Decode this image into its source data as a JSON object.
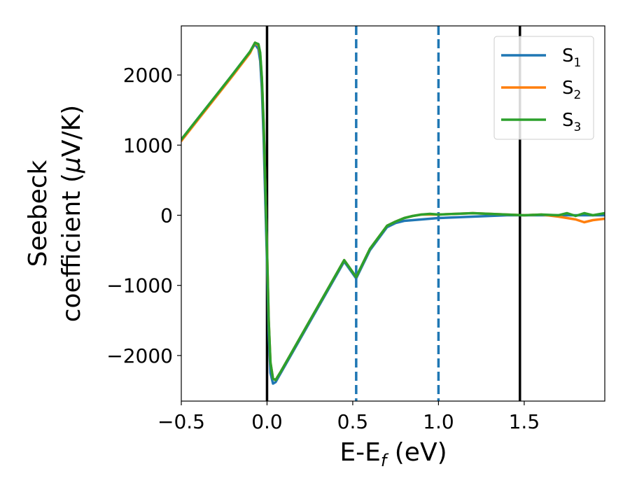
{
  "chart_data": {
    "type": "line",
    "xlabel": {
      "main": "E-E",
      "sub": "f",
      "suffix": " (eV)"
    },
    "ylabel": {
      "line1": "Seebeck",
      "line2_pre": "coefficient  (",
      "line2_mu": "μ",
      "line2_post": "V/K)"
    },
    "xlim": [
      -0.5,
      1.97
    ],
    "ylim": [
      -2650,
      2700
    ],
    "xticks": [
      -0.5,
      0.0,
      0.5,
      1.0,
      1.5
    ],
    "xtick_labels": [
      "−0.5",
      "0.0",
      "0.5",
      "1.0",
      "1.5"
    ],
    "yticks": [
      -2000,
      -1000,
      0,
      1000,
      2000
    ],
    "ytick_labels": [
      "−2000",
      "−1000",
      "0",
      "1000",
      "2000"
    ],
    "grid": false,
    "legend_position": "top-right",
    "vlines": [
      {
        "x": 0.0,
        "color": "#000000",
        "style": "solid"
      },
      {
        "x": 1.475,
        "color": "#000000",
        "style": "solid"
      },
      {
        "x": 0.52,
        "color": "#1f77b4",
        "style": "dashed"
      },
      {
        "x": 1.0,
        "color": "#1f77b4",
        "style": "dashed"
      }
    ],
    "series": [
      {
        "name": "S",
        "sub": "1",
        "color": "#1f77b4",
        "x": [
          -0.5,
          -0.4,
          -0.3,
          -0.2,
          -0.1,
          -0.07,
          -0.05,
          -0.04,
          -0.03,
          -0.02,
          -0.01,
          0.0,
          0.01,
          0.02,
          0.035,
          0.05,
          0.08,
          0.15,
          0.25,
          0.35,
          0.45,
          0.52,
          0.6,
          0.7,
          0.75,
          0.8,
          0.85,
          0.9,
          1.0,
          1.1,
          1.2,
          1.3,
          1.4,
          1.5,
          1.6,
          1.7,
          1.8,
          1.9,
          1.97
        ],
        "y": [
          1080,
          1390,
          1700,
          2010,
          2330,
          2440,
          2370,
          2200,
          1800,
          1100,
          200,
          -700,
          -1700,
          -2250,
          -2400,
          -2380,
          -2250,
          -1950,
          -1520,
          -1090,
          -660,
          -900,
          -500,
          -170,
          -110,
          -80,
          -70,
          -60,
          -40,
          -30,
          -20,
          -10,
          0,
          0,
          0,
          0,
          0,
          0,
          0
        ]
      },
      {
        "name": "S",
        "sub": "2",
        "color": "#ff7f0e",
        "x": [
          -0.5,
          -0.4,
          -0.3,
          -0.2,
          -0.1,
          -0.07,
          -0.05,
          -0.04,
          -0.03,
          -0.02,
          -0.01,
          0.0,
          0.01,
          0.02,
          0.035,
          0.05,
          0.08,
          0.15,
          0.25,
          0.35,
          0.45,
          0.52,
          0.6,
          0.7,
          0.75,
          0.8,
          0.85,
          0.9,
          1.0,
          1.1,
          1.2,
          1.3,
          1.4,
          1.5,
          1.6,
          1.7,
          1.8,
          1.85,
          1.9,
          1.97
        ],
        "y": [
          1060,
          1370,
          1680,
          1990,
          2310,
          2460,
          2420,
          2300,
          1950,
          1300,
          450,
          -500,
          -1500,
          -2100,
          -2330,
          -2350,
          -2230,
          -1930,
          -1500,
          -1070,
          -640,
          -880,
          -480,
          -150,
          -90,
          -40,
          -10,
          10,
          10,
          20,
          30,
          20,
          10,
          0,
          10,
          -20,
          -60,
          -100,
          -70,
          -50
        ]
      },
      {
        "name": "S",
        "sub": "3",
        "color": "#2ca02c",
        "x": [
          -0.5,
          -0.4,
          -0.3,
          -0.2,
          -0.1,
          -0.07,
          -0.05,
          -0.04,
          -0.03,
          -0.02,
          -0.01,
          0.0,
          0.01,
          0.02,
          0.035,
          0.05,
          0.08,
          0.15,
          0.25,
          0.35,
          0.45,
          0.52,
          0.6,
          0.7,
          0.75,
          0.8,
          0.85,
          0.9,
          0.95,
          1.0,
          1.1,
          1.2,
          1.3,
          1.4,
          1.5,
          1.6,
          1.7,
          1.75,
          1.8,
          1.85,
          1.9,
          1.97
        ],
        "y": [
          1080,
          1390,
          1700,
          2010,
          2330,
          2460,
          2440,
          2320,
          1960,
          1320,
          460,
          -500,
          -1500,
          -2100,
          -2330,
          -2350,
          -2230,
          -1930,
          -1500,
          -1070,
          -640,
          -880,
          -480,
          -150,
          -90,
          -40,
          -10,
          10,
          20,
          10,
          20,
          30,
          20,
          10,
          0,
          10,
          0,
          30,
          -10,
          30,
          0,
          30
        ]
      }
    ]
  }
}
